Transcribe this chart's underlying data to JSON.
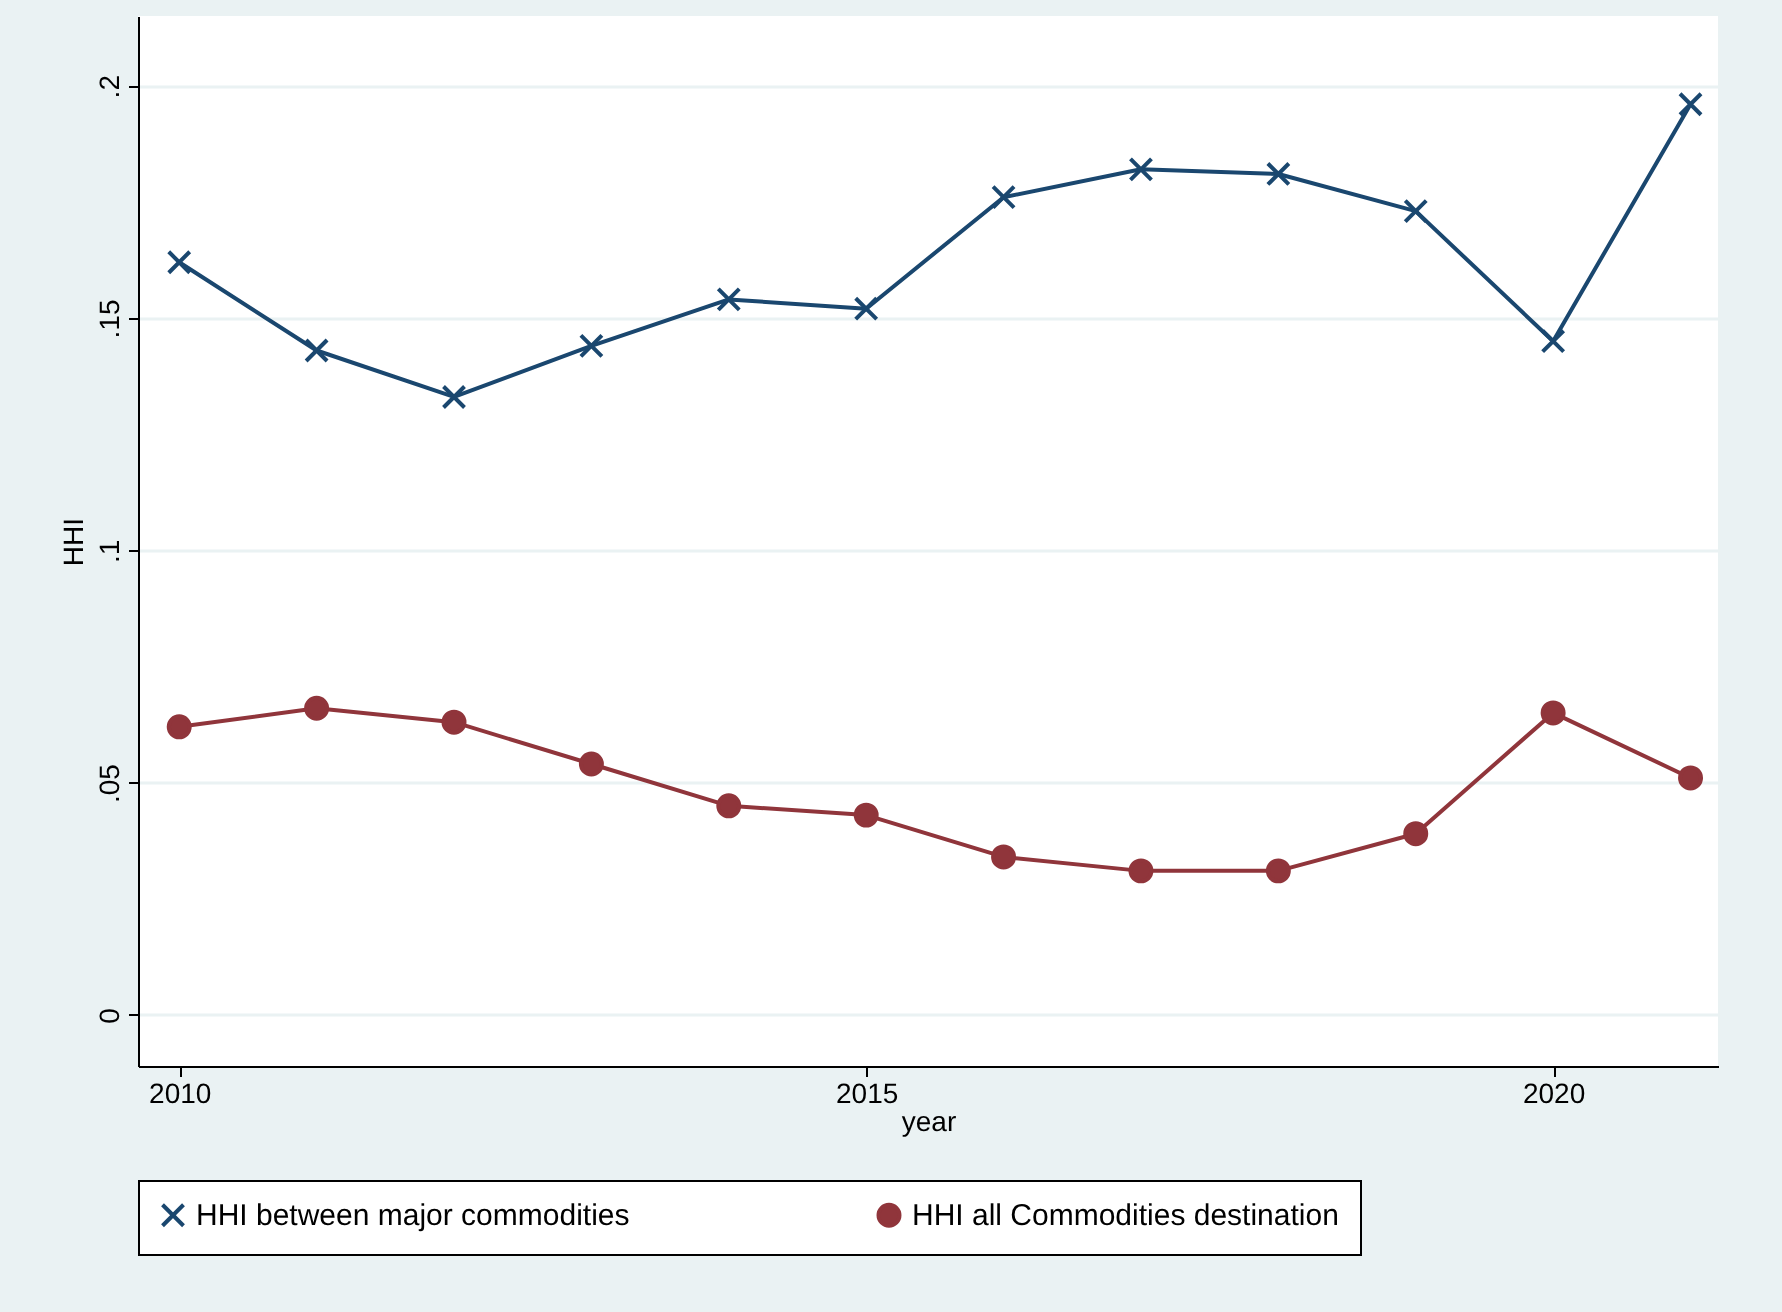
{
  "chart_data": {
    "type": "line",
    "xlabel": "year",
    "ylabel": "HHI",
    "x": [
      2010,
      2011,
      2012,
      2013,
      2014,
      2015,
      2016,
      2017,
      2018,
      2019,
      2020,
      2021
    ],
    "series": [
      {
        "name": "HHI between major commodities",
        "color": "#1a476f",
        "marker": "cross",
        "values": [
          0.162,
          0.143,
          0.133,
          0.144,
          0.154,
          0.152,
          0.176,
          0.182,
          0.181,
          0.173,
          0.145,
          0.196
        ]
      },
      {
        "name": "HHI all Commodities destination",
        "color": "#90353b",
        "marker": "circle",
        "values": [
          0.062,
          0.066,
          0.063,
          0.054,
          0.045,
          0.043,
          0.034,
          0.031,
          0.031,
          0.039,
          0.065,
          0.051
        ]
      }
    ],
    "xlim": [
      2009.7,
      2021.2
    ],
    "xticks": [
      2010,
      2015,
      2020
    ],
    "ylim": [
      -0.011,
      0.215
    ],
    "yticks": [
      0,
      {
        "value": 0.05,
        "label": ".05"
      },
      {
        "value": 0.1,
        "label": ".1"
      },
      {
        "value": 0.15,
        "label": ".15"
      },
      {
        "value": 0.2,
        "label": ".2"
      }
    ],
    "grid": "y",
    "legend": "bottom",
    "line_style": "solid"
  }
}
